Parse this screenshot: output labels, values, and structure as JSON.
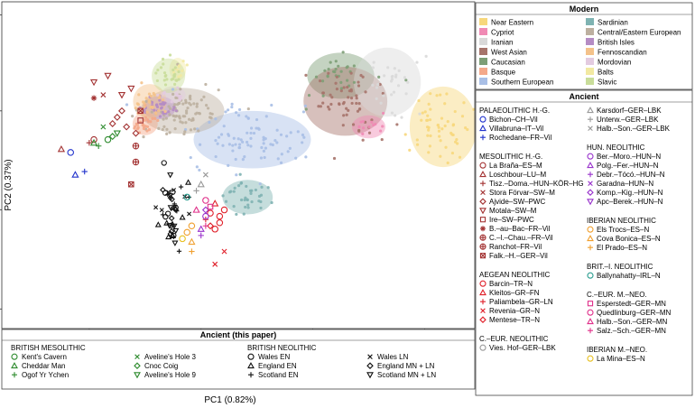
{
  "chart_data": {
    "type": "scatter",
    "title": "",
    "xlabel": "PC1 (0.82%)",
    "ylabel": "PC2 (0.37%)",
    "grid": false,
    "modern_legend": {
      "title": "Modern",
      "entries": [
        {
          "label": "Near Eastern",
          "color": "#f7d77c"
        },
        {
          "label": "Sardinian",
          "color": "#7fb3b2"
        },
        {
          "label": "Cypriot",
          "color": "#f08ab4"
        },
        {
          "label": "Central/Eastern European",
          "color": "#bdb0a0"
        },
        {
          "label": "Iranian",
          "color": "#d9d9d9"
        },
        {
          "label": "British Isles",
          "color": "#b58cc4"
        },
        {
          "label": "West Asian",
          "color": "#a6736a"
        },
        {
          "label": "Fennoscandian",
          "color": "#f4c28a"
        },
        {
          "label": "Caucasian",
          "color": "#7d9e76"
        },
        {
          "label": "Mordovian",
          "color": "#e3cbe0"
        },
        {
          "label": "Basque",
          "color": "#f4a98a"
        },
        {
          "label": "Balts",
          "color": "#f2e9a2"
        },
        {
          "label": "Southern European",
          "color": "#a9bfe6"
        },
        {
          "label": "Slavic",
          "color": "#c9dd9a"
        }
      ]
    },
    "ancient_legend": {
      "title": "Ancient",
      "groups": [
        {
          "title": "PALAEOLITHIC H.-G.",
          "items": [
            {
              "label": "Bichon–CH–Vil",
              "marker": "circle",
              "color": "#2233cc"
            },
            {
              "label": "Villabruna–IT–Vil",
              "marker": "triangle",
              "color": "#2233cc"
            },
            {
              "label": "Rochedane–FR–Vil",
              "marker": "plus",
              "color": "#2233cc"
            }
          ]
        },
        {
          "title": "MESOLITHIC H.-G.",
          "items": [
            {
              "label": "La Braña–ES–M",
              "marker": "circle",
              "color": "#a33333"
            },
            {
              "label": "Loschbour–LU–M",
              "marker": "triangle",
              "color": "#a33333"
            },
            {
              "label": "Tisz.–Doma.–HUN–KÖR–HG",
              "marker": "plus",
              "color": "#a33333"
            },
            {
              "label": "Stora Förvar–SW–M",
              "marker": "cross",
              "color": "#a33333"
            },
            {
              "label": "Ajvide–SW–PWC",
              "marker": "diamond",
              "color": "#a33333"
            },
            {
              "label": "Motala–SW–M",
              "marker": "invtriangle",
              "color": "#a33333"
            },
            {
              "label": "Ire–SW–PWC",
              "marker": "square",
              "color": "#a33333"
            },
            {
              "label": "B.–au–Bac–FR–Vil",
              "marker": "asterisk",
              "color": "#a33333"
            },
            {
              "label": "C.–l.–Chau.–FR–Vil",
              "marker": "circleplus",
              "color": "#a33333"
            },
            {
              "label": "Ranchot–FR–Vil",
              "marker": "circleplus",
              "color": "#a33333"
            },
            {
              "label": "Falk.–H.–GER–Vil",
              "marker": "squarex",
              "color": "#a33333"
            }
          ]
        },
        {
          "title": "AEGEAN NEOLITHIC",
          "items": [
            {
              "label": "Barcin–TR–N",
              "marker": "circle",
              "color": "#e0202a"
            },
            {
              "label": "Kleitos–GR–FN",
              "marker": "triangle",
              "color": "#e0202a"
            },
            {
              "label": "Paliambela–GR–LN",
              "marker": "plus",
              "color": "#e0202a"
            },
            {
              "label": "Revenia–GR–N",
              "marker": "cross",
              "color": "#e0202a"
            },
            {
              "label": "Mentese–TR–N",
              "marker": "diamond",
              "color": "#e0202a"
            }
          ]
        },
        {
          "title": "C.–EUR. NEOLITHIC",
          "items": [
            {
              "label": "Vies. Hof–GER–LBK",
              "marker": "circle",
              "color": "#999999"
            }
          ]
        },
        {
          "title": "",
          "items": [
            {
              "label": "Karsdorf–GER–LBK",
              "marker": "triangle",
              "color": "#999999"
            },
            {
              "label": "Unterw.–GER–LBK",
              "marker": "plus",
              "color": "#999999"
            },
            {
              "label": "Halb.–Son.–GER–LBK",
              "marker": "cross",
              "color": "#999999"
            }
          ]
        },
        {
          "title": "HUN. NEOLITHIC",
          "items": [
            {
              "label": "Ber.–Moro.–HUN–N",
              "marker": "circle",
              "color": "#9933cc"
            },
            {
              "label": "Polg.–Fer.–HUN–N",
              "marker": "triangle",
              "color": "#9933cc"
            },
            {
              "label": "Debr.–Tócó.–HUN–N",
              "marker": "plus",
              "color": "#9933cc"
            },
            {
              "label": "Garadna–HUN–N",
              "marker": "cross",
              "color": "#9933cc"
            },
            {
              "label": "Komp.–Kig.–HUN–N",
              "marker": "diamond",
              "color": "#9933cc"
            },
            {
              "label": "Apc–Berek.–HUN–N",
              "marker": "invtriangle",
              "color": "#9933cc"
            }
          ]
        },
        {
          "title": "IBERIAN NEOLITHIC",
          "items": [
            {
              "label": "Els Trocs–ES–N",
              "marker": "circle",
              "color": "#f0a030"
            },
            {
              "label": "Cova Bonica–ES–N",
              "marker": "triangle",
              "color": "#f0a030"
            },
            {
              "label": "El Prado–ES–N",
              "marker": "plus",
              "color": "#f0a030"
            }
          ]
        },
        {
          "title": "BRIT.–I. NEOLITHIC",
          "items": [
            {
              "label": "Ballynahatty–IRL–N",
              "marker": "circle",
              "color": "#2a9d8f"
            }
          ]
        },
        {
          "title": "C.–EUR. M.–NEO.",
          "items": [
            {
              "label": "Esperstedt–GER–MN",
              "marker": "square",
              "color": "#e0308a"
            },
            {
              "label": "Quedlinburg–GER–MN",
              "marker": "circle",
              "color": "#e0308a"
            },
            {
              "label": "Halb.–Son.–GER–MN",
              "marker": "triangle",
              "color": "#e0308a"
            },
            {
              "label": "Salz.–Sch.–GER–MN",
              "marker": "plus",
              "color": "#e0308a"
            }
          ]
        },
        {
          "title": "IBERIAN M.–NEO.",
          "items": [
            {
              "label": "La Mina–ES–N",
              "marker": "circle",
              "color": "#e8c020"
            }
          ]
        }
      ]
    },
    "this_paper_legend": {
      "title": "Ancient (this paper)",
      "groups": [
        {
          "title": "BRITISH MESOLITHIC",
          "items": [
            {
              "label": "Kent's Cavern",
              "marker": "circle",
              "color": "#2e8b2e"
            },
            {
              "label": "Cheddar Man",
              "marker": "triangle",
              "color": "#2e8b2e"
            },
            {
              "label": "Ogof Yr Ychen",
              "marker": "plus",
              "color": "#2e8b2e"
            }
          ]
        },
        {
          "title": "",
          "items": [
            {
              "label": "Aveline's Hole 3",
              "marker": "cross",
              "color": "#2e8b2e"
            },
            {
              "label": "Cnoc Coig",
              "marker": "diamond",
              "color": "#2e8b2e"
            },
            {
              "label": "Aveline's Hole 9",
              "marker": "invtriangle",
              "color": "#2e8b2e"
            }
          ]
        },
        {
          "title": "BRITISH NEOLITHIC",
          "items": [
            {
              "label": "Wales EN",
              "marker": "circle",
              "color": "#111111"
            },
            {
              "label": "England EN",
              "marker": "triangle",
              "color": "#111111"
            },
            {
              "label": "Scotland EN",
              "marker": "plus",
              "color": "#111111"
            }
          ]
        },
        {
          "title": "",
          "items": [
            {
              "label": "Wales LN",
              "marker": "cross",
              "color": "#111111"
            },
            {
              "label": "England MN + LN",
              "marker": "diamond",
              "color": "#111111"
            },
            {
              "label": "Scotland MN + LN",
              "marker": "invtriangle",
              "color": "#111111"
            }
          ]
        }
      ]
    },
    "modern_clusters": [
      {
        "group": "Caucasian",
        "center": [
          0.72,
          0.78
        ],
        "spread": [
          0.04,
          0.04
        ],
        "n": 30
      },
      {
        "group": "West Asian",
        "center": [
          0.73,
          0.7
        ],
        "spread": [
          0.05,
          0.06
        ],
        "n": 60
      },
      {
        "group": "Iranian",
        "center": [
          0.82,
          0.76
        ],
        "spread": [
          0.04,
          0.06
        ],
        "n": 30
      },
      {
        "group": "Near Eastern",
        "center": [
          0.94,
          0.62
        ],
        "spread": [
          0.04,
          0.07
        ],
        "n": 55
      },
      {
        "group": "Cypriot",
        "center": [
          0.78,
          0.62
        ],
        "spread": [
          0.02,
          0.02
        ],
        "n": 12
      },
      {
        "group": "Southern European",
        "center": [
          0.53,
          0.58
        ],
        "spread": [
          0.07,
          0.05
        ],
        "n": 90
      },
      {
        "group": "Sardinian",
        "center": [
          0.52,
          0.4
        ],
        "spread": [
          0.03,
          0.03
        ],
        "n": 35
      },
      {
        "group": "Central/Eastern European",
        "center": [
          0.38,
          0.67
        ],
        "spread": [
          0.05,
          0.04
        ],
        "n": 90
      },
      {
        "group": "British Isles",
        "center": [
          0.33,
          0.68
        ],
        "spread": [
          0.02,
          0.02
        ],
        "n": 35
      },
      {
        "group": "Basque",
        "center": [
          0.3,
          0.63
        ],
        "spread": [
          0.015,
          0.02
        ],
        "n": 25
      },
      {
        "group": "Fennoscandian",
        "center": [
          0.31,
          0.7
        ],
        "spread": [
          0.02,
          0.03
        ],
        "n": 30
      },
      {
        "group": "Mordovian",
        "center": [
          0.36,
          0.72
        ],
        "spread": [
          0.015,
          0.015
        ],
        "n": 12
      },
      {
        "group": "Balts",
        "center": [
          0.37,
          0.8
        ],
        "spread": [
          0.01,
          0.02
        ],
        "n": 10
      },
      {
        "group": "Slavic",
        "center": [
          0.35,
          0.78
        ],
        "spread": [
          0.02,
          0.03
        ],
        "n": 25
      }
    ],
    "ancient_points": [
      {
        "marker": "circle",
        "color": "#2233cc",
        "x": 0.14,
        "y": 0.54
      },
      {
        "marker": "triangle",
        "color": "#2233cc",
        "x": 0.15,
        "y": 0.47
      },
      {
        "marker": "plus",
        "color": "#2233cc",
        "x": 0.17,
        "y": 0.48
      },
      {
        "marker": "triangle",
        "color": "#a33333",
        "x": 0.12,
        "y": 0.55
      },
      {
        "marker": "plus",
        "color": "#a33333",
        "x": 0.18,
        "y": 0.57
      },
      {
        "marker": "circle",
        "color": "#a33333",
        "x": 0.19,
        "y": 0.58
      },
      {
        "marker": "asterisk",
        "color": "#a33333",
        "x": 0.19,
        "y": 0.71
      },
      {
        "marker": "cross",
        "color": "#a33333",
        "x": 0.21,
        "y": 0.72
      },
      {
        "marker": "invtriangle",
        "color": "#a33333",
        "x": 0.19,
        "y": 0.76
      },
      {
        "marker": "invtriangle",
        "color": "#a33333",
        "x": 0.22,
        "y": 0.78
      },
      {
        "marker": "invtriangle",
        "color": "#a33333",
        "x": 0.27,
        "y": 0.74
      },
      {
        "marker": "invtriangle",
        "color": "#a33333",
        "x": 0.25,
        "y": 0.72
      },
      {
        "marker": "diamond",
        "color": "#a33333",
        "x": 0.25,
        "y": 0.67
      },
      {
        "marker": "diamond",
        "color": "#a33333",
        "x": 0.24,
        "y": 0.65
      },
      {
        "marker": "diamond",
        "color": "#a33333",
        "x": 0.23,
        "y": 0.63
      },
      {
        "marker": "diamond",
        "color": "#a33333",
        "x": 0.26,
        "y": 0.62
      },
      {
        "marker": "diamond",
        "color": "#a33333",
        "x": 0.28,
        "y": 0.6
      },
      {
        "marker": "squarex",
        "color": "#a33333",
        "x": 0.29,
        "y": 0.67
      },
      {
        "marker": "square",
        "color": "#a33333",
        "x": 0.29,
        "y": 0.64
      },
      {
        "marker": "circleplus",
        "color": "#a33333",
        "x": 0.28,
        "y": 0.56
      },
      {
        "marker": "circleplus",
        "color": "#a33333",
        "x": 0.28,
        "y": 0.51
      },
      {
        "marker": "squarex",
        "color": "#a33333",
        "x": 0.27,
        "y": 0.44
      },
      {
        "marker": "circle",
        "color": "#2e8b2e",
        "x": 0.22,
        "y": 0.58
      },
      {
        "marker": "triangle",
        "color": "#2e8b2e",
        "x": 0.19,
        "y": 0.57
      },
      {
        "marker": "plus",
        "color": "#2e8b2e",
        "x": 0.2,
        "y": 0.56
      },
      {
        "marker": "cross",
        "color": "#2e8b2e",
        "x": 0.21,
        "y": 0.62
      },
      {
        "marker": "diamond",
        "color": "#2e8b2e",
        "x": 0.23,
        "y": 0.59
      },
      {
        "marker": "invtriangle",
        "color": "#2e8b2e",
        "x": 0.24,
        "y": 0.6
      },
      {
        "marker": "circle",
        "color": "#e0202a",
        "x": 0.46,
        "y": 0.34
      },
      {
        "marker": "circle",
        "color": "#e0202a",
        "x": 0.47,
        "y": 0.36
      },
      {
        "marker": "circle",
        "color": "#e0202a",
        "x": 0.46,
        "y": 0.32
      },
      {
        "marker": "circle",
        "color": "#e0202a",
        "x": 0.45,
        "y": 0.3
      },
      {
        "marker": "circle",
        "color": "#e0202a",
        "x": 0.44,
        "y": 0.35
      },
      {
        "marker": "triangle",
        "color": "#e0202a",
        "x": 0.45,
        "y": 0.38
      },
      {
        "marker": "plus",
        "color": "#e0202a",
        "x": 0.43,
        "y": 0.33
      },
      {
        "marker": "cross",
        "color": "#e0202a",
        "x": 0.45,
        "y": 0.19
      },
      {
        "marker": "cross",
        "color": "#e0202a",
        "x": 0.47,
        "y": 0.23
      },
      {
        "marker": "diamond",
        "color": "#e0202a",
        "x": 0.44,
        "y": 0.31
      },
      {
        "marker": "triangle",
        "color": "#999999",
        "x": 0.42,
        "y": 0.44
      },
      {
        "marker": "plus",
        "color": "#999999",
        "x": 0.41,
        "y": 0.42
      },
      {
        "marker": "cross",
        "color": "#999999",
        "x": 0.43,
        "y": 0.47
      },
      {
        "marker": "circle",
        "color": "#9933cc",
        "x": 0.43,
        "y": 0.34
      },
      {
        "marker": "triangle",
        "color": "#9933cc",
        "x": 0.42,
        "y": 0.3
      },
      {
        "marker": "plus",
        "color": "#9933cc",
        "x": 0.42,
        "y": 0.28
      },
      {
        "marker": "diamond",
        "color": "#9933cc",
        "x": 0.43,
        "y": 0.36
      },
      {
        "marker": "circle",
        "color": "#f0a030",
        "x": 0.39,
        "y": 0.29
      },
      {
        "marker": "circle",
        "color": "#f0a030",
        "x": 0.4,
        "y": 0.31
      },
      {
        "marker": "triangle",
        "color": "#f0a030",
        "x": 0.4,
        "y": 0.26
      },
      {
        "marker": "plus",
        "color": "#f0a030",
        "x": 0.4,
        "y": 0.23
      },
      {
        "marker": "circle",
        "color": "#2a9d8f",
        "x": 0.39,
        "y": 0.4
      },
      {
        "marker": "square",
        "color": "#e0308a",
        "x": 0.44,
        "y": 0.37
      },
      {
        "marker": "circle",
        "color": "#e0308a",
        "x": 0.43,
        "y": 0.39
      },
      {
        "marker": "triangle",
        "color": "#e0308a",
        "x": 0.41,
        "y": 0.36
      },
      {
        "marker": "plus",
        "color": "#e0308a",
        "x": 0.43,
        "y": 0.31
      },
      {
        "marker": "circle",
        "color": "#e8c020",
        "x": 0.38,
        "y": 0.27
      }
    ],
    "british_neolithic_cluster": {
      "center": [
        0.36,
        0.35
      ],
      "spread": [
        0.015,
        0.06
      ],
      "n": 45,
      "markers": [
        "plus",
        "cross",
        "circle",
        "triangle",
        "diamond",
        "invtriangle"
      ],
      "color": "#111111"
    }
  }
}
